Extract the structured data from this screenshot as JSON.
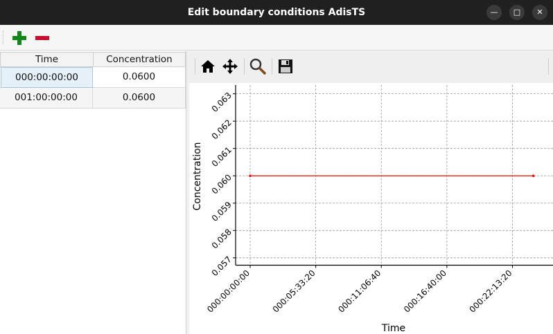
{
  "window": {
    "title": "Edit boundary conditions AdisTS",
    "minimize_icon": "minimize-icon",
    "maximize_icon": "maximize-icon",
    "close_icon": "close-icon"
  },
  "toolbar": {
    "add_icon": "plus-icon",
    "remove_icon": "minus-icon",
    "add_color": "#11871a",
    "remove_color": "#c8102e"
  },
  "table": {
    "headers": [
      "Time",
      "Concentration"
    ],
    "rows": [
      [
        "000:00:00:00",
        "0.0600"
      ],
      [
        "001:00:00:00",
        "0.0600"
      ]
    ]
  },
  "plot_toolbar": {
    "icons": [
      "home-icon",
      "pan-icon",
      "zoom-icon",
      "save-icon"
    ]
  },
  "chart_data": {
    "type": "line",
    "xlabel": "Time",
    "ylabel": "Concentration",
    "x_tick_labels": [
      "000:00:00:00",
      "000:05:33:20",
      "000:11:06:40",
      "000:16:40:00",
      "000:22:13:20"
    ],
    "y_tick_labels": [
      "0.057",
      "0.058",
      "0.059",
      "0.060",
      "0.061",
      "0.062",
      "0.063"
    ],
    "series": [
      {
        "x": [
          "000:00:00:00",
          "001:00:00:00"
        ],
        "values": [
          0.06,
          0.06
        ],
        "color": "#ff0000"
      }
    ],
    "ylim": [
      0.05673,
      0.06332
    ],
    "xlim": [
      "-000:01:14:00",
      "001:01:39:30"
    ],
    "grid": true
  }
}
